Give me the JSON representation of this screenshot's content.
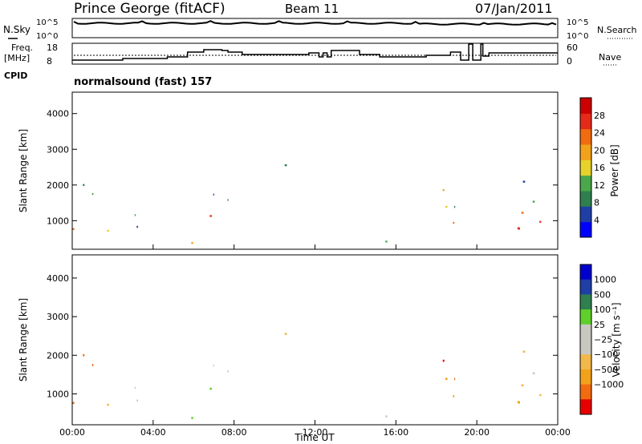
{
  "header": {
    "radar": "Prince George (fitACF)",
    "beam": "Beam 11",
    "date": "07/Jan/2011"
  },
  "status_panels": {
    "nsky_label": "N.Sky",
    "nsky_ticks": [
      "10^5",
      "10^0"
    ],
    "nsearch_label": "N.Search",
    "nsearch_ticks": [
      "10^5",
      "10^0"
    ],
    "freq_label_1": "Freq.",
    "freq_label_2": "[MHz]",
    "freq_ticks": [
      "18",
      "8"
    ],
    "nave_label": "Nave",
    "nave_ticks": [
      "60",
      "0"
    ],
    "cpid_label": "CPID",
    "cpid_value": "normalsound (fast) 157"
  },
  "colors": {
    "power": [
      "#0000ff",
      "#1f3fa6",
      "#2f7f4f",
      "#4aa84a",
      "#e6d22a",
      "#f2a21a",
      "#f26b0f",
      "#e62a1a",
      "#cc0000"
    ],
    "velocity": [
      "#e60000",
      "#f26b0f",
      "#f2a21a",
      "#f2b84a",
      "#c8c8c0",
      "#c8c8c0",
      "#5fcf2a",
      "#2f7f4f",
      "#1f3fa6",
      "#0000cc"
    ],
    "ground_scatter": "#b8b8b0"
  },
  "chart_data": [
    {
      "type": "heatmap",
      "name": "power",
      "ylabel": "Slant Range [km]",
      "y_ticks": [
        "1000",
        "2000",
        "3000",
        "4000"
      ],
      "ylim": [
        200,
        4600
      ],
      "xlim_hours": [
        0,
        24
      ],
      "colorbar_label": "Power [dB]",
      "colorbar_ticks": [
        "4",
        "8",
        "12",
        "16",
        "20",
        "24",
        "28"
      ],
      "colorbar_range": [
        0,
        32
      ]
    },
    {
      "type": "heatmap",
      "name": "velocity",
      "ylabel": "Slant Range [km]",
      "y_ticks": [
        "1000",
        "2000",
        "3000",
        "4000"
      ],
      "ylim": [
        200,
        4600
      ],
      "xlim_hours": [
        0,
        24
      ],
      "colorbar_label": "Velocity [m s⁻¹]",
      "colorbar_ticks": [
        "1000",
        "500",
        "100",
        "25",
        "−25",
        "−100",
        "−500",
        "−1000"
      ],
      "xlabel": "Time UT",
      "x_ticks": [
        "00:00",
        "04:00",
        "08:00",
        "12:00",
        "16:00",
        "20:00",
        "00:00"
      ]
    }
  ]
}
